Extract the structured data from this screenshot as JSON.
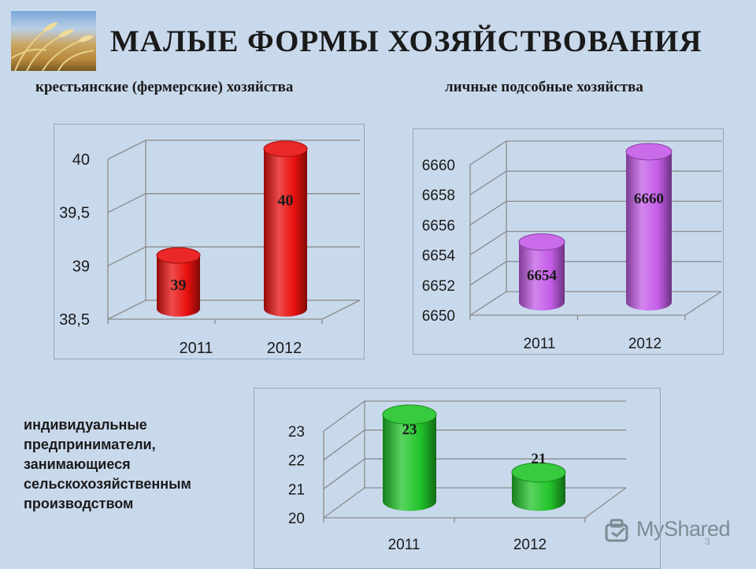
{
  "title": "МАЛЫЕ ФОРМЫ ХОЗЯЙСТВОВАНИЯ",
  "side_label": "индивидуальные\nпредприниматели,\nзанимающиеся\nсельскохозяйственным\nпроизводством",
  "watermark": "MyShared",
  "page_number": "3",
  "colors": {
    "background": "#c9d9ec",
    "red": "#e8100f",
    "violet": "#c45ce8",
    "green": "#22c42a"
  },
  "chart_data": [
    {
      "type": "bar",
      "title": "крестьянские (фермерские) хозяйства",
      "categories": [
        "2011",
        "2012"
      ],
      "values": [
        39,
        40
      ],
      "value_labels": [
        "39",
        "40"
      ],
      "ylim": [
        38.5,
        40
      ],
      "yticks": [
        38.5,
        39,
        39.5,
        40
      ],
      "ytick_labels": [
        "38,5",
        "39",
        "39,5",
        "40"
      ],
      "color": "#e8100f",
      "grid": true,
      "style": "3d-cylinder"
    },
    {
      "type": "bar",
      "title": "личные подсобные хозяйства",
      "categories": [
        "2011",
        "2012"
      ],
      "values": [
        6654,
        6660
      ],
      "value_labels": [
        "6654",
        "6660"
      ],
      "ylim": [
        6650,
        6660
      ],
      "yticks": [
        6650,
        6652,
        6654,
        6656,
        6658,
        6660
      ],
      "ytick_labels": [
        "6650",
        "6652",
        "6654",
        "6656",
        "6658",
        "6660"
      ],
      "color": "#c45ce8",
      "grid": true,
      "style": "3d-cylinder"
    },
    {
      "type": "bar",
      "title": "",
      "categories": [
        "2011",
        "2012"
      ],
      "values": [
        23,
        21
      ],
      "value_labels": [
        "23",
        "21"
      ],
      "ylim": [
        20,
        23
      ],
      "yticks": [
        20,
        21,
        22,
        23
      ],
      "ytick_labels": [
        "20",
        "21",
        "22",
        "23"
      ],
      "color": "#22c42a",
      "grid": true,
      "style": "3d-cylinder"
    }
  ]
}
